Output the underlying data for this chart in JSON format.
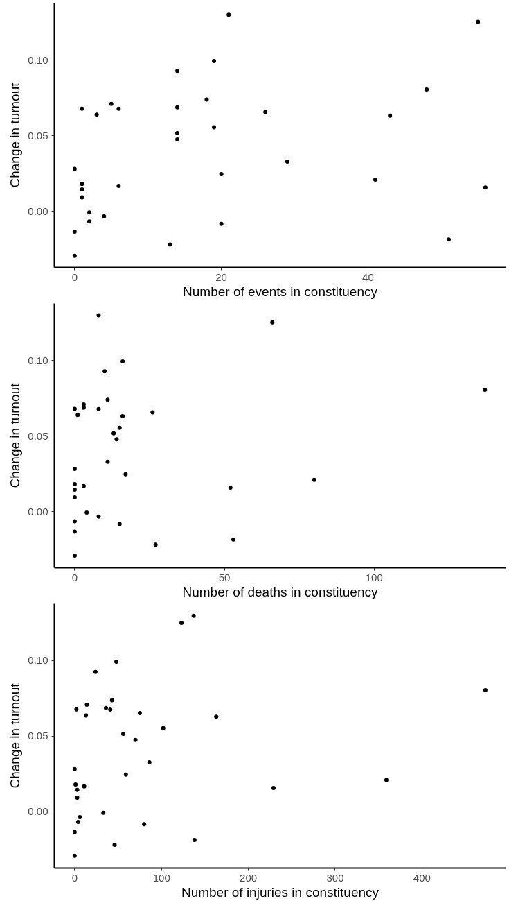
{
  "chart_data": [
    {
      "type": "scatter",
      "xlabel": "Number of events in constituency",
      "ylabel": "Change in turnout",
      "color": "#000000",
      "marker": "circle",
      "xlim": [
        -2.77,
        58.8
      ],
      "ylim": [
        -0.0369,
        0.1377
      ],
      "xticks": [
        0,
        20,
        40
      ],
      "yticks": [
        {
          "value": 0,
          "label": "0.00"
        },
        {
          "value": 0.05,
          "label": "0.05"
        },
        {
          "value": 0.1,
          "label": "0.10"
        }
      ],
      "x": [
        0,
        0,
        0,
        1,
        1,
        1,
        1,
        2,
        2,
        3,
        4,
        5,
        6,
        6,
        13,
        14,
        14,
        14,
        14,
        18,
        19,
        19,
        20,
        20,
        21,
        26,
        29,
        41,
        43,
        48,
        51,
        55,
        56
      ],
      "values": [
        0.0282,
        -0.0133,
        -0.0292,
        0.0679,
        0.0182,
        0.0146,
        0.0094,
        -0.0006,
        -0.0065,
        0.064,
        -0.0032,
        0.0711,
        0.0679,
        0.017,
        -0.0218,
        0.0929,
        0.0688,
        0.0518,
        0.0477,
        0.074,
        0.0994,
        0.0557,
        0.0247,
        -0.0081,
        0.13,
        0.0657,
        0.033,
        0.0211,
        0.0633,
        0.0807,
        -0.0185,
        0.1253,
        0.0159
      ]
    },
    {
      "type": "scatter",
      "xlabel": "Number of deaths in constituency",
      "ylabel": "Change in turnout",
      "color": "#000000",
      "marker": "circle",
      "xlim": [
        -6.8,
        144
      ],
      "ylim": [
        -0.037,
        0.1378
      ],
      "xticks": [
        0,
        50,
        100
      ],
      "yticks": [
        {
          "value": 0,
          "label": "0.00"
        },
        {
          "value": 0.05,
          "label": "0.05"
        },
        {
          "value": 0.1,
          "label": "0.10"
        }
      ],
      "x": [
        0,
        0,
        0,
        0,
        0,
        0,
        0,
        0,
        1,
        3,
        3,
        3,
        4,
        8,
        8,
        8,
        10,
        11,
        11,
        13,
        14,
        15,
        15,
        16,
        16,
        17,
        26,
        27,
        52,
        53,
        66,
        80,
        137
      ],
      "values": [
        0.0284,
        0.0183,
        0.0146,
        0.0096,
        -0.0063,
        -0.0131,
        -0.029,
        0.0681,
        0.064,
        0.0711,
        0.0689,
        0.017,
        -0.0005,
        0.13,
        0.0679,
        -0.0032,
        0.093,
        0.0741,
        0.0331,
        0.0519,
        0.048,
        0.0556,
        -0.0081,
        0.0995,
        0.0632,
        0.0248,
        0.0658,
        -0.0217,
        0.016,
        -0.0183,
        0.1253,
        0.0212,
        0.0807
      ]
    },
    {
      "type": "scatter",
      "xlabel": "Number of injuries in constituency",
      "ylabel": "Change in turnout",
      "color": "#000000",
      "marker": "circle",
      "xlim": [
        -23.4,
        496.6
      ],
      "ylim": [
        -0.0374,
        0.1376
      ],
      "xticks": [
        0,
        100,
        200,
        300,
        400
      ],
      "yticks": [
        {
          "value": 0,
          "label": "0.00"
        },
        {
          "value": 0.05,
          "label": "0.05"
        },
        {
          "value": 0.1,
          "label": "0.10"
        }
      ],
      "x": [
        0,
        0,
        0,
        2,
        1,
        3,
        3,
        4,
        6,
        11,
        13,
        14,
        24,
        33,
        36,
        41,
        43,
        46,
        48,
        56,
        59,
        70,
        75,
        80,
        86,
        102,
        123,
        137,
        138,
        163,
        229,
        359,
        473
      ],
      "values": [
        0.0282,
        -0.0135,
        -0.0293,
        0.0677,
        0.018,
        0.0144,
        0.0092,
        -0.0068,
        -0.0036,
        0.0167,
        0.0637,
        0.0708,
        0.0925,
        -0.0008,
        0.0686,
        0.0676,
        0.0737,
        -0.022,
        0.0992,
        0.0515,
        0.0245,
        0.0475,
        0.0653,
        -0.0084,
        0.0327,
        0.0553,
        0.125,
        0.1297,
        -0.0188,
        0.0629,
        0.0157,
        0.0209,
        0.0804
      ]
    }
  ]
}
